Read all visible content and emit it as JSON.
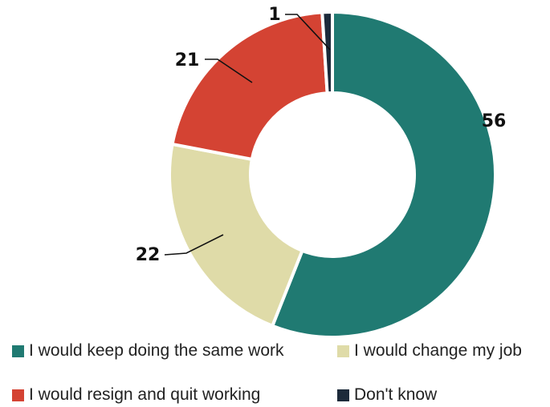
{
  "chart_data": {
    "type": "pie",
    "donut": true,
    "title": "",
    "categories": [
      "I would keep doing the same work",
      "I would change my job",
      "I would resign and quit working",
      "Don't know"
    ],
    "values": [
      56,
      22,
      21,
      1
    ],
    "data_labels": [
      "56",
      "22",
      "21",
      "1"
    ],
    "colors": [
      "#207a72",
      "#dfdba8",
      "#d44333",
      "#1c2a3a"
    ],
    "legend_position": "bottom"
  }
}
